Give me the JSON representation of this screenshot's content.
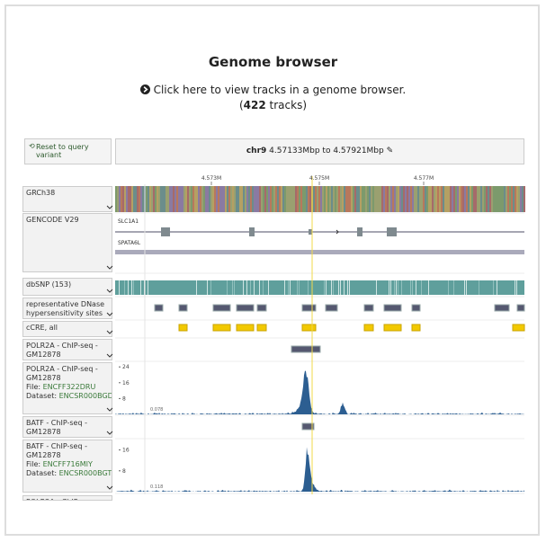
{
  "header": {
    "title": "Genome browser",
    "link": "Click here to view tracks in a genome browser.",
    "count_open": "(",
    "count": 422,
    "count_close": " tracks)"
  },
  "controls": {
    "reset": "Reset to query variant",
    "chromosome": "chr9",
    "range": "4.57133Mbp to 4.57921Mbp"
  },
  "ruler": [
    "4.573M",
    "4.575M",
    "4.577M"
  ],
  "tracks": [
    {
      "label": "GRCh38"
    },
    {
      "label": "GENCODE V29",
      "genes": [
        "SLC1A1",
        "SPATA6L"
      ]
    },
    {
      "label": "dbSNP (153)"
    },
    {
      "label": "representative DNase hypersensitivity sites"
    },
    {
      "label": "cCRE, all"
    },
    {
      "label": "POLR2A - ChIP-seq - GM12878"
    },
    {
      "label": "POLR2A - ChIP-seq - GM12878",
      "file_prefix": "File: ",
      "file": "ENCFF322DRU",
      "dataset_prefix": "Dataset: ",
      "dataset": "ENCSR000BGD",
      "ticks": [
        24,
        16,
        8
      ],
      "min": 0.078
    },
    {
      "label": "BATF - ChIP-seq - GM12878"
    },
    {
      "label": "BATF - ChIP-seq - GM12878",
      "file_prefix": "File: ",
      "file": "ENCFF716MIY",
      "dataset_prefix": "Dataset: ",
      "dataset": "ENCSR000BGT",
      "ticks": [
        16,
        8
      ],
      "min": 0.118
    },
    {
      "label": "POLR2A - ChIP-seq"
    }
  ]
}
